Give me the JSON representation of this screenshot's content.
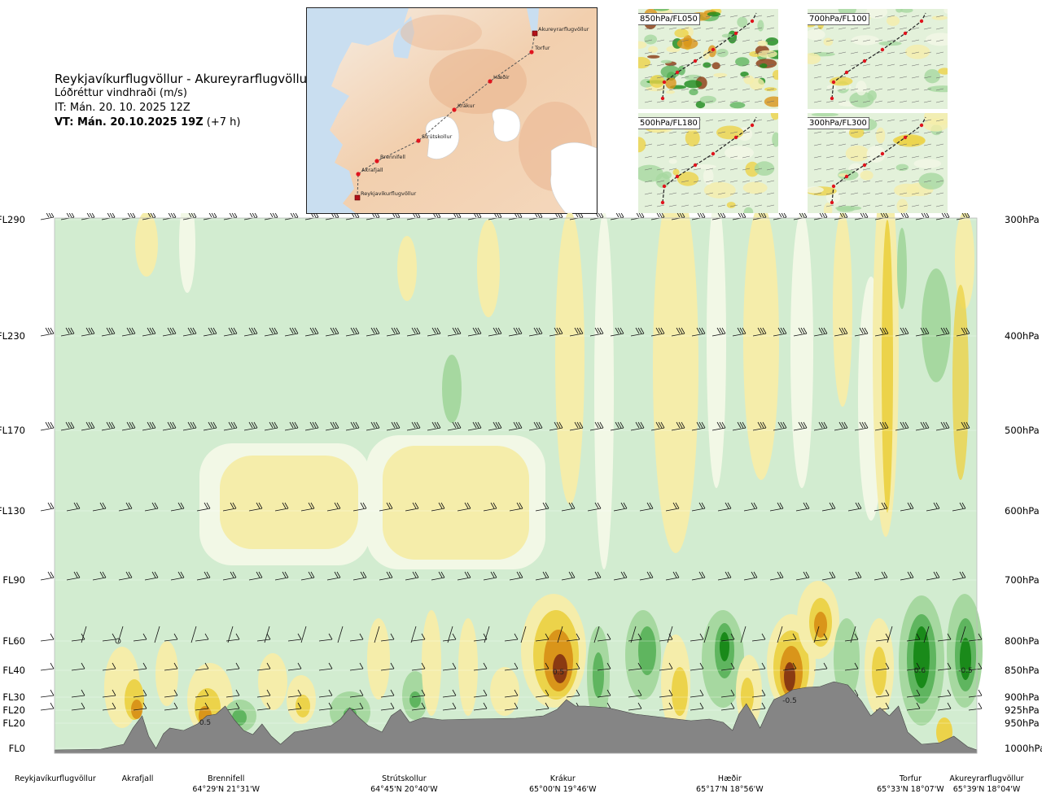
{
  "title": {
    "route": "Reykjavíkurflugvöllur - Akureyrarflugvöllur",
    "variable": "Lóðréttur vindhraði (m/s)",
    "it": "IT: Mán. 20. 10. 2025 12Z",
    "vt_bold": "VT: Mán. 20.10.2025 19Z",
    "vt_lead": "(+7 h)"
  },
  "map": {
    "points": [
      {
        "name": "Akureyrarflugvöllur"
      },
      {
        "name": "Torfur"
      },
      {
        "name": "Hæðir"
      },
      {
        "name": "Krákur"
      },
      {
        "name": "Strútskollur"
      },
      {
        "name": "Brennifell"
      },
      {
        "name": "Akrafjall"
      },
      {
        "name": "Reykjavíkurflugvöllur"
      }
    ]
  },
  "mini_maps": [
    {
      "label": "850hPa/FL050"
    },
    {
      "label": "700hPa/FL100"
    },
    {
      "label": "500hPa/FL180"
    },
    {
      "label": "300hPa/FL300"
    }
  ],
  "chart_data": {
    "type": "heatmap",
    "variable": "Lóðréttur vindhraði (m/s)",
    "y_axis_left": [
      "FL290",
      "FL230",
      "FL170",
      "FL130",
      "FL90",
      "FL60",
      "FL40",
      "FL30",
      "FL20",
      "FL20",
      "FL0"
    ],
    "y_axis_right": [
      "300hPa",
      "400hPa",
      "500hPa",
      "600hPa",
      "700hPa",
      "800hPa",
      "850hPa",
      "900hPa",
      "925hPa",
      "950hPa",
      "1000hPa"
    ],
    "pressure_levels_hpa": [
      300,
      400,
      500,
      600,
      700,
      800,
      850,
      900,
      925,
      950,
      1000
    ],
    "waypoints": [
      {
        "name": "Reykjavíkurflugvöllur",
        "coord": "",
        "dist": 0.0
      },
      {
        "name": "Akrafjall",
        "coord": "",
        "dist": 0.09
      },
      {
        "name": "Brennifell",
        "coord": "64°29'N 21°31'W",
        "dist": 0.186
      },
      {
        "name": "Strútskollur",
        "coord": "64°45'N 20°40'W",
        "dist": 0.379
      },
      {
        "name": "Krákur",
        "coord": "65°00'N 19°46'W",
        "dist": 0.551
      },
      {
        "name": "Hæðir",
        "coord": "65°17'N 18°56'W",
        "dist": 0.732
      },
      {
        "name": "Torfur",
        "coord": "65°33'N 18°07'W",
        "dist": 0.928
      },
      {
        "name": "Akureyrarflugvöllur",
        "coord": "65°39'N 18°04'W",
        "dist": 1.0
      }
    ],
    "contour_labels": [
      "0.5",
      "0.5",
      "0.6",
      "-0.5",
      "-0.5"
    ],
    "colors": {
      "strong_down": "#1a8a1a",
      "mod_down": "#5fb55f",
      "weak_down": "#a6d8a0",
      "neutral": "#d2ecd0",
      "near_zero": "#f2f8e6",
      "weak_up": "#f5edaa",
      "mod_up": "#ecd34a",
      "strong_up": "#d9951a",
      "very_strong_up": "#8a3a12",
      "terrain": "#858585"
    }
  }
}
